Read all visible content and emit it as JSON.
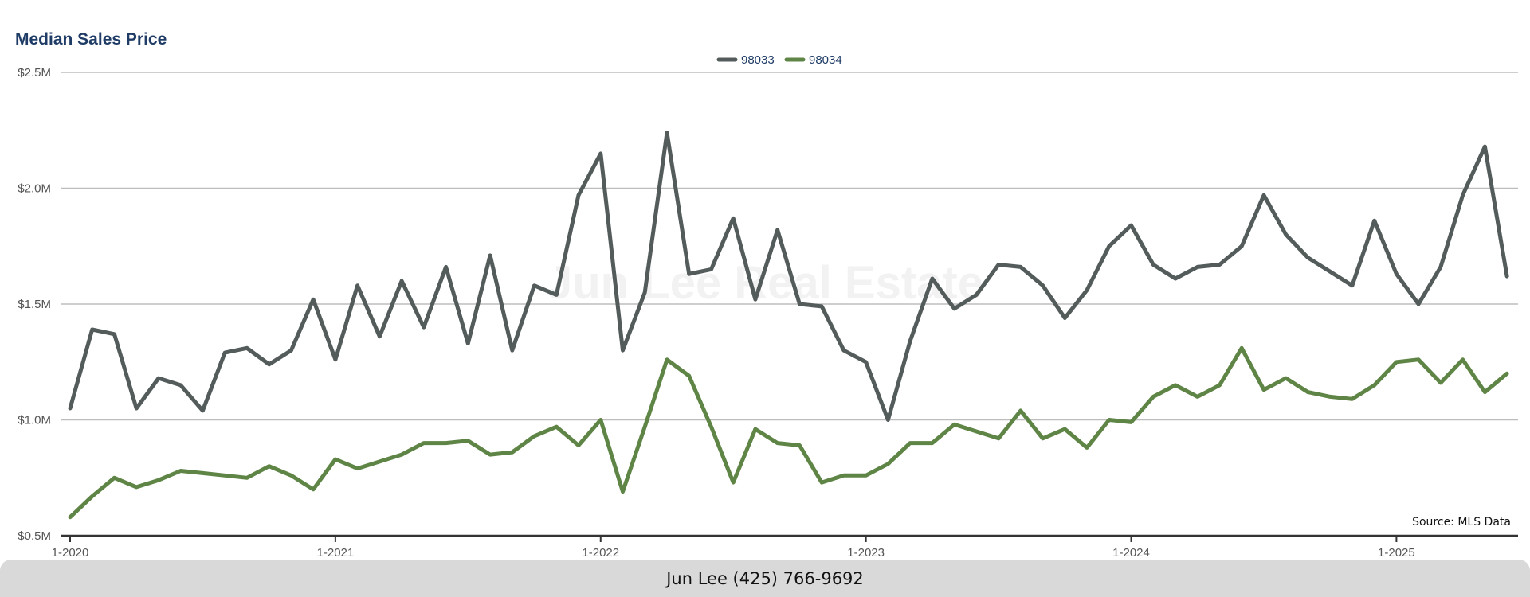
{
  "chart_data": {
    "type": "line",
    "title": "Median Sales Price",
    "xlabel": "",
    "ylabel": "",
    "ylim": [
      500000,
      2500000
    ],
    "y_ticks": [
      {
        "value": 2500000,
        "label": "$2.5M"
      },
      {
        "value": 2000000,
        "label": "$2.0M"
      },
      {
        "value": 1500000,
        "label": "$1.5M"
      },
      {
        "value": 1000000,
        "label": "$1.0M"
      },
      {
        "value": 500000,
        "label": "$0.5M"
      }
    ],
    "x_ticks": [
      "1-2020",
      "1-2021",
      "1-2022",
      "1-2023",
      "1-2024",
      "1-2025"
    ],
    "x_start": "2020-01",
    "x_end": "2025-06",
    "grid": true,
    "legend_position": "top-center",
    "colors": {
      "98033": "#535b5b",
      "98034": "#5f8546",
      "title": "#1f3c66",
      "grid": "#bdbdbd",
      "axis": "#333333",
      "tick_label": "#555555",
      "legend_label": "#1f3c66",
      "watermark": "#f3f3f3",
      "footer_bg": "#d9d9d9"
    },
    "series": [
      {
        "name": "98033",
        "color": "#535b5b",
        "values": [
          1050000,
          1390000,
          1370000,
          1050000,
          1180000,
          1150000,
          1040000,
          1290000,
          1310000,
          1240000,
          1300000,
          1520000,
          1260000,
          1580000,
          1360000,
          1600000,
          1400000,
          1660000,
          1330000,
          1710000,
          1300000,
          1580000,
          1540000,
          1970000,
          2150000,
          1300000,
          1550000,
          2240000,
          1630000,
          1650000,
          1870000,
          1520000,
          1820000,
          1500000,
          1490000,
          1300000,
          1250000,
          1000000,
          1340000,
          1610000,
          1480000,
          1540000,
          1670000,
          1660000,
          1580000,
          1440000,
          1560000,
          1750000,
          1840000,
          1670000,
          1610000,
          1660000,
          1670000,
          1750000,
          1970000,
          1800000,
          1700000,
          1640000,
          1580000,
          1860000,
          1630000,
          1500000,
          1660000,
          1970000,
          2180000,
          1620000
        ]
      },
      {
        "name": "98034",
        "color": "#5f8546",
        "values": [
          580000,
          670000,
          750000,
          710000,
          740000,
          780000,
          770000,
          760000,
          750000,
          800000,
          760000,
          700000,
          830000,
          790000,
          820000,
          850000,
          900000,
          900000,
          910000,
          850000,
          860000,
          930000,
          970000,
          890000,
          1000000,
          690000,
          970000,
          1260000,
          1190000,
          970000,
          730000,
          960000,
          900000,
          890000,
          730000,
          760000,
          760000,
          810000,
          900000,
          900000,
          980000,
          950000,
          920000,
          1040000,
          920000,
          960000,
          880000,
          1000000,
          990000,
          1100000,
          1150000,
          1100000,
          1150000,
          1310000,
          1130000,
          1180000,
          1120000,
          1100000,
          1090000,
          1150000,
          1250000,
          1260000,
          1160000,
          1260000,
          1120000,
          1200000
        ]
      }
    ]
  },
  "watermark": "Jun Lee Real Estate",
  "source_note": "Source: MLS Data",
  "footer": {
    "contact": "Jun Lee (425) 766-9692"
  }
}
